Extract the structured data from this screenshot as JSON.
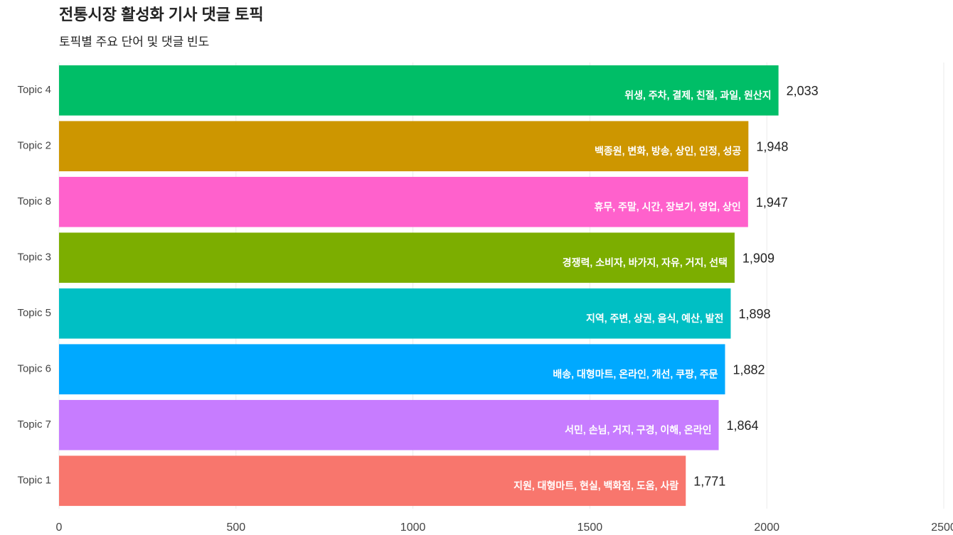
{
  "chart_data": {
    "type": "bar",
    "orientation": "horizontal",
    "title": "전통시장 활성화 기사 댓글 토픽",
    "subtitle": "토픽별 주요 단어 및 댓글 빈도",
    "categories": [
      "Topic 4",
      "Topic 2",
      "Topic 8",
      "Topic 3",
      "Topic 5",
      "Topic 6",
      "Topic 7",
      "Topic 1"
    ],
    "values": [
      2033,
      1948,
      1947,
      1909,
      1898,
      1882,
      1864,
      1771
    ],
    "value_labels": [
      "2,033",
      "1,948",
      "1,947",
      "1,909",
      "1,898",
      "1,882",
      "1,864",
      "1,771"
    ],
    "bar_labels": [
      "위생, 주차, 결제, 친절, 과일, 원산지",
      "백종원, 변화, 방송, 상인, 인정, 성공",
      "휴무, 주말, 시간, 장보기, 영업, 상인",
      "경쟁력, 소비자, 바가지, 자유, 거지, 선택",
      "지역, 주변, 상권, 음식, 예산, 발전",
      "배송, 대형마트, 온라인, 개선, 쿠팡, 주문",
      "서민, 손님, 거지, 구경, 이해, 온라인",
      "지원, 대형마트, 현실, 백화점, 도움, 사람"
    ],
    "colors": [
      "#00BE67",
      "#CD9600",
      "#FF61CC",
      "#7CAE00",
      "#00BFC4",
      "#00A9FF",
      "#C77CFF",
      "#F8766D"
    ],
    "xlim": [
      0,
      2500
    ],
    "xticks": [
      0,
      500,
      1000,
      1500,
      2000,
      2500
    ],
    "grid": true
  }
}
